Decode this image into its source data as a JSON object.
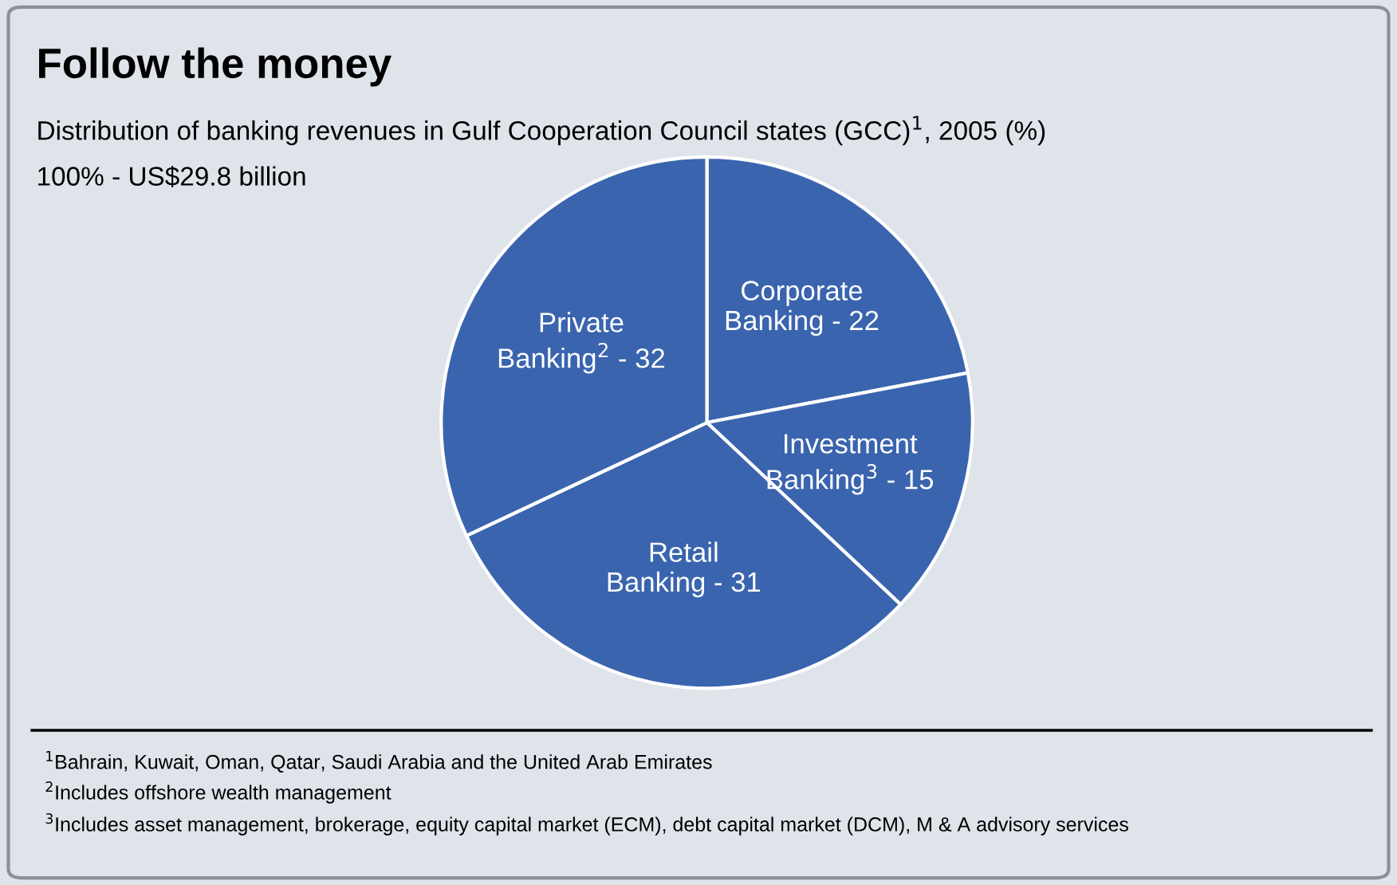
{
  "chart_data": {
    "type": "pie",
    "title": "Follow the money",
    "subtitle": "Distribution of banking revenues in Gulf Cooperation Council states (GCC)$^{1}$, 2005 (%)",
    "annotations": [
      "100% - US$29.8 billion",
      "$^{1}$Bahrain, Kuwait, Oman, Qatar, Saudi Arabia and the United Arab Emirates",
      "$^{2}$Includes offshore wealth management",
      "$^{3}$Includes asset management, brokerage, equity capital market (ECM), debt capital market (DCM), M & A advisory services"
    ],
    "categories": [
      "Corporate Banking - 22",
      "Investment Banking$^{3}$ - 15",
      "Retail Banking - 31",
      "Private Banking$^{2}$ - 32"
    ],
    "values": [
      22,
      15,
      31,
      32
    ],
    "colors": [
      "#3a64ae",
      "#3a64ae",
      "#3a64ae",
      "#3a64ae"
    ]
  }
}
